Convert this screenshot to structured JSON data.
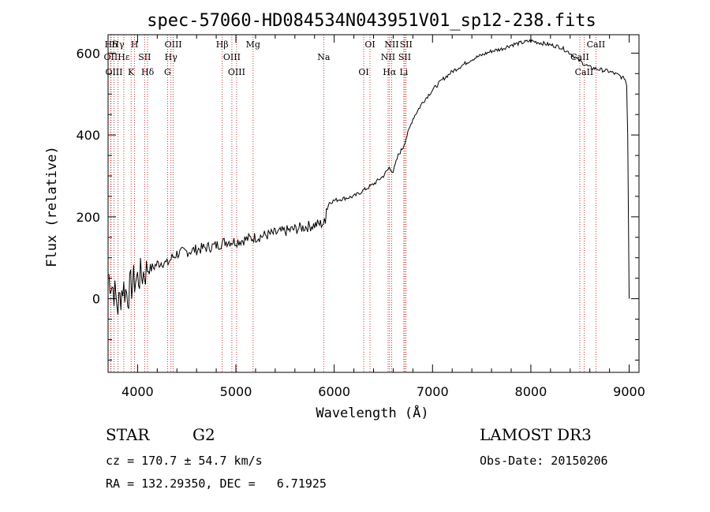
{
  "chart_data": {
    "type": "line",
    "title": "spec-57060-HD084534N043951V01_sp12-238.fits",
    "xlabel": "Wavelength (Å)",
    "ylabel": "Flux (relative)",
    "xlim": [
      3700,
      9100
    ],
    "ylim": [
      -180,
      645
    ],
    "xticks": [
      4000,
      5000,
      6000,
      7000,
      8000,
      9000
    ],
    "yticks": [
      0,
      200,
      400,
      600
    ],
    "series": [
      {
        "name": "spectrum",
        "x": [
          3700,
          3760,
          3800,
          3850,
          3900,
          3950,
          4000,
          4050,
          4100,
          4150,
          4200,
          4250,
          4300,
          4350,
          4400,
          4500,
          4600,
          4700,
          4800,
          4900,
          5000,
          5100,
          5200,
          5300,
          5400,
          5500,
          5600,
          5700,
          5800,
          5900,
          5910,
          5920,
          5950,
          6000,
          6100,
          6200,
          6300,
          6400,
          6500,
          6560,
          6600,
          6650,
          6700,
          6750,
          6800,
          6900,
          7000,
          7100,
          7200,
          7300,
          7400,
          7500,
          7600,
          7700,
          7800,
          7900,
          8000,
          8100,
          8200,
          8300,
          8400,
          8500,
          8600,
          8700,
          8800,
          8900,
          8960,
          8975,
          8985,
          9000
        ],
        "y": [
          60,
          20,
          -20,
          30,
          10,
          40,
          50,
          60,
          70,
          75,
          85,
          90,
          85,
          100,
          110,
          115,
          120,
          125,
          130,
          140,
          140,
          145,
          150,
          155,
          160,
          165,
          170,
          175,
          180,
          185,
          195,
          220,
          235,
          240,
          245,
          250,
          265,
          280,
          300,
          320,
          310,
          350,
          370,
          405,
          440,
          480,
          510,
          535,
          555,
          570,
          585,
          595,
          605,
          610,
          620,
          625,
          630,
          625,
          620,
          615,
          600,
          580,
          565,
          560,
          555,
          545,
          535,
          520,
          400,
          0
        ]
      }
    ],
    "emission_lines": [
      {
        "label": "Hδ",
        "x": 3730
      },
      {
        "label": "OII",
        "x": 3727
      },
      {
        "label": "OIII",
        "x": 3760
      },
      {
        "label": "Hγ",
        "x": 3800
      },
      {
        "label": "Hε",
        "x": 3860
      },
      {
        "label": "K",
        "x": 3934
      },
      {
        "label": "H",
        "x": 3969
      },
      {
        "label": "SII",
        "x": 4072
      },
      {
        "label": "Hδ",
        "x": 4102
      },
      {
        "label": "OIII",
        "x": 4363
      },
      {
        "label": "Hγ",
        "x": 4340
      },
      {
        "label": "G",
        "x": 4305
      },
      {
        "label": "Hβ",
        "x": 4861
      },
      {
        "label": "OIII",
        "x": 4959
      },
      {
        "label": "OIII",
        "x": 5007
      },
      {
        "label": "Mg",
        "x": 5175
      },
      {
        "label": "Na",
        "x": 5893
      },
      {
        "label": "OI",
        "x": 6300
      },
      {
        "label": "OI",
        "x": 6364
      },
      {
        "label": "NII",
        "x": 6548
      },
      {
        "label": "Hα",
        "x": 6563
      },
      {
        "label": "NII",
        "x": 6584
      },
      {
        "label": "SII",
        "x": 6717
      },
      {
        "label": "Li",
        "x": 6708
      },
      {
        "label": "SII",
        "x": 6731
      },
      {
        "label": "CaII",
        "x": 8498
      },
      {
        "label": "CaII",
        "x": 8542
      },
      {
        "label": "CaII",
        "x": 8662
      }
    ]
  },
  "info": {
    "object_class": "STAR",
    "subclass": "G2",
    "survey": "LAMOST DR3",
    "cz": "cz = 170.7 ± 54.7 km/s",
    "obs_date": "Obs-Date: 20150206",
    "coords": "RA = 132.29350, DEC =   6.71925"
  }
}
